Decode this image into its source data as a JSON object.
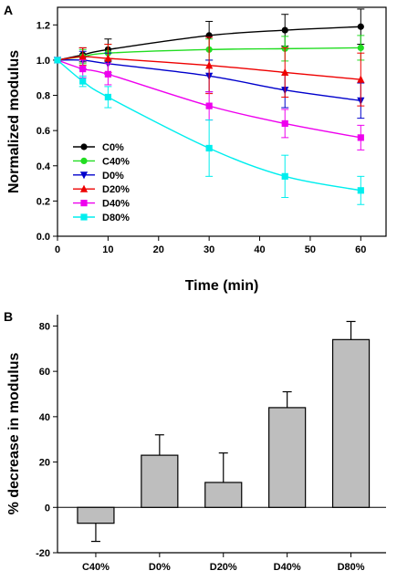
{
  "chart_data": [
    {
      "panel": "A",
      "type": "line",
      "xlabel": "Time (min)",
      "ylabel": "Normalized modulus",
      "xlim": [
        0,
        65
      ],
      "ylim": [
        0,
        1.3
      ],
      "xticks": [
        "0",
        "10",
        "20",
        "30",
        "40",
        "50",
        "60"
      ],
      "yticks": [
        "0.0",
        "0.2",
        "0.4",
        "0.6",
        "0.8",
        "1.0",
        "1.2"
      ],
      "x": [
        0,
        5,
        10,
        30,
        45,
        60
      ],
      "legend_position": "lower-left",
      "series": [
        {
          "name": "C0%",
          "color": "#000000",
          "marker": "circle",
          "values": [
            1.0,
            1.03,
            1.06,
            1.14,
            1.17,
            1.19
          ],
          "errors": [
            0,
            0.04,
            0.06,
            0.08,
            0.09,
            0.1
          ]
        },
        {
          "name": "C40%",
          "color": "#22dd22",
          "marker": "circle",
          "values": [
            1.0,
            1.02,
            1.04,
            1.06,
            1.065,
            1.07
          ],
          "errors": [
            0,
            0.04,
            0.05,
            0.06,
            0.07,
            0.07
          ]
        },
        {
          "name": "D0%",
          "color": "#0000cc",
          "marker": "triangle-down",
          "values": [
            1.0,
            1.0,
            0.98,
            0.91,
            0.83,
            0.77
          ],
          "errors": [
            0,
            0.05,
            0.06,
            0.09,
            0.1,
            0.1
          ]
        },
        {
          "name": "D20%",
          "color": "#ee0000",
          "marker": "triangle-up",
          "values": [
            1.0,
            1.02,
            1.01,
            0.97,
            0.93,
            0.89
          ],
          "errors": [
            0,
            0.05,
            0.08,
            0.16,
            0.14,
            0.15
          ]
        },
        {
          "name": "D40%",
          "color": "#ee00ee",
          "marker": "square",
          "values": [
            1.0,
            0.95,
            0.92,
            0.74,
            0.64,
            0.56
          ],
          "errors": [
            0,
            0.05,
            0.06,
            0.08,
            0.08,
            0.07
          ]
        },
        {
          "name": "D80%",
          "color": "#00eeee",
          "marker": "square",
          "values": [
            1.0,
            0.88,
            0.79,
            0.5,
            0.34,
            0.26
          ],
          "errors": [
            0,
            0.03,
            0.06,
            0.16,
            0.12,
            0.08
          ]
        }
      ]
    },
    {
      "panel": "B",
      "type": "bar",
      "ylabel": "% decrease in modulus",
      "ylim": [
        -20,
        85
      ],
      "yticks": [
        "-20",
        "0",
        "20",
        "40",
        "60",
        "80"
      ],
      "categories": [
        "C40%",
        "D0%",
        "D20%",
        "D40%",
        "D80%"
      ],
      "values": [
        -7,
        23,
        11,
        44,
        74
      ],
      "errors": [
        8,
        9,
        13,
        7,
        8
      ],
      "bar_color": "#bebebe"
    }
  ]
}
